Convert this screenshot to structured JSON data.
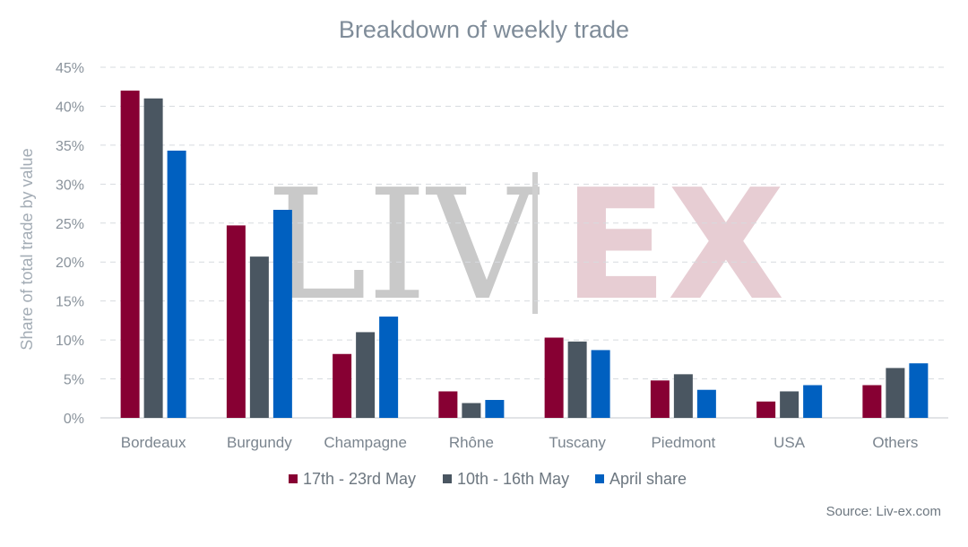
{
  "chart_data": {
    "type": "bar",
    "title": "Breakdown of weekly trade",
    "ylabel": "Share of total trade by value",
    "xlabel": "",
    "ylim": [
      0,
      45
    ],
    "yticks": [
      "0%",
      "5%",
      "10%",
      "15%",
      "20%",
      "25%",
      "30%",
      "35%",
      "40%",
      "45%"
    ],
    "grid": true,
    "legend_position": "bottom",
    "categories": [
      "Bordeaux",
      "Burgundy",
      "Champagne",
      "Rhône",
      "Tuscany",
      "Piedmont",
      "USA",
      "Others"
    ],
    "series": [
      {
        "name": "17th - 23rd May",
        "color": "#870033",
        "values": [
          42.0,
          24.7,
          8.2,
          3.4,
          10.3,
          4.8,
          2.1,
          4.2
        ]
      },
      {
        "name": "10th - 16th May",
        "color": "#4a5661",
        "values": [
          41.0,
          20.7,
          11.0,
          1.9,
          9.8,
          5.6,
          3.4,
          6.4
        ]
      },
      {
        "name": "April share",
        "color": "#0060c0",
        "values": [
          34.3,
          26.7,
          13.0,
          2.3,
          8.7,
          3.6,
          4.2,
          7.0
        ]
      }
    ],
    "source": "Source: Liv-ex.com",
    "watermark": {
      "left": "LIV",
      "right": "EX"
    }
  }
}
